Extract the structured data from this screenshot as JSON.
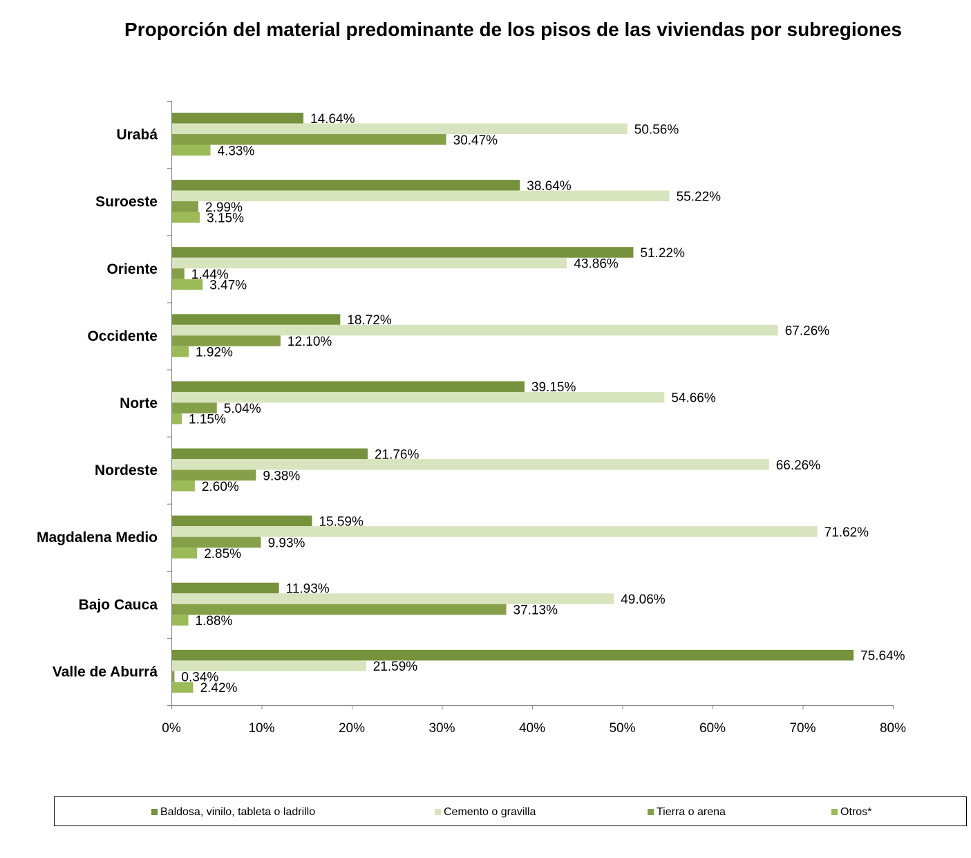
{
  "chart_data": {
    "type": "bar",
    "orientation": "horizontal",
    "title": "Proporción del material predominante de los pisos de las viviendas por subregiones",
    "categories": [
      "Urabá",
      "Suroeste",
      "Oriente",
      "Occidente",
      "Norte",
      "Nordeste",
      "Magdalena Medio",
      "Bajo Cauca",
      "Valle de Aburrá"
    ],
    "series": [
      {
        "name": "Baldosa, vinilo, tableta o ladrillo",
        "color": "#76923c",
        "values": [
          14.64,
          38.64,
          51.22,
          18.72,
          39.15,
          21.76,
          15.59,
          11.93,
          75.64
        ],
        "labels": [
          "14.64%",
          "38.64%",
          "51.22%",
          "18.72%",
          "39.15%",
          "21.76%",
          "15.59%",
          "11.93%",
          "75.64%"
        ]
      },
      {
        "name": "Cemento o gravilla",
        "color": "#d7e4bd",
        "values": [
          50.56,
          55.22,
          43.86,
          67.26,
          54.66,
          66.26,
          71.62,
          49.06,
          21.59
        ],
        "labels": [
          "50.56%",
          "55.22%",
          "43.86%",
          "67.26%",
          "54.66%",
          "66.26%",
          "71.62%",
          "49.06%",
          "21.59%"
        ]
      },
      {
        "name": "Tierra o arena",
        "color": "#86a04a",
        "values": [
          30.47,
          2.99,
          1.44,
          12.1,
          5.04,
          9.38,
          9.93,
          37.13,
          0.34
        ],
        "labels": [
          "30.47%",
          "2.99%",
          "1.44%",
          "12.10%",
          "5.04%",
          "9.38%",
          "9.93%",
          "37.13%",
          "0.34%"
        ]
      },
      {
        "name": "Otros*",
        "color": "#9bbb59",
        "values": [
          4.33,
          3.15,
          3.47,
          1.92,
          1.15,
          2.6,
          2.85,
          1.88,
          2.42
        ],
        "labels": [
          "4.33%",
          "3.15%",
          "3.47%",
          "1.92%",
          "1.15%",
          "2.60%",
          "2.85%",
          "1.88%",
          "2.42%"
        ]
      }
    ],
    "x_ticks": [
      "0%",
      "10%",
      "20%",
      "30%",
      "40%",
      "50%",
      "60%",
      "70%",
      "80%"
    ],
    "xlim": [
      0,
      80
    ],
    "grid": false,
    "legend_position": "bottom"
  }
}
